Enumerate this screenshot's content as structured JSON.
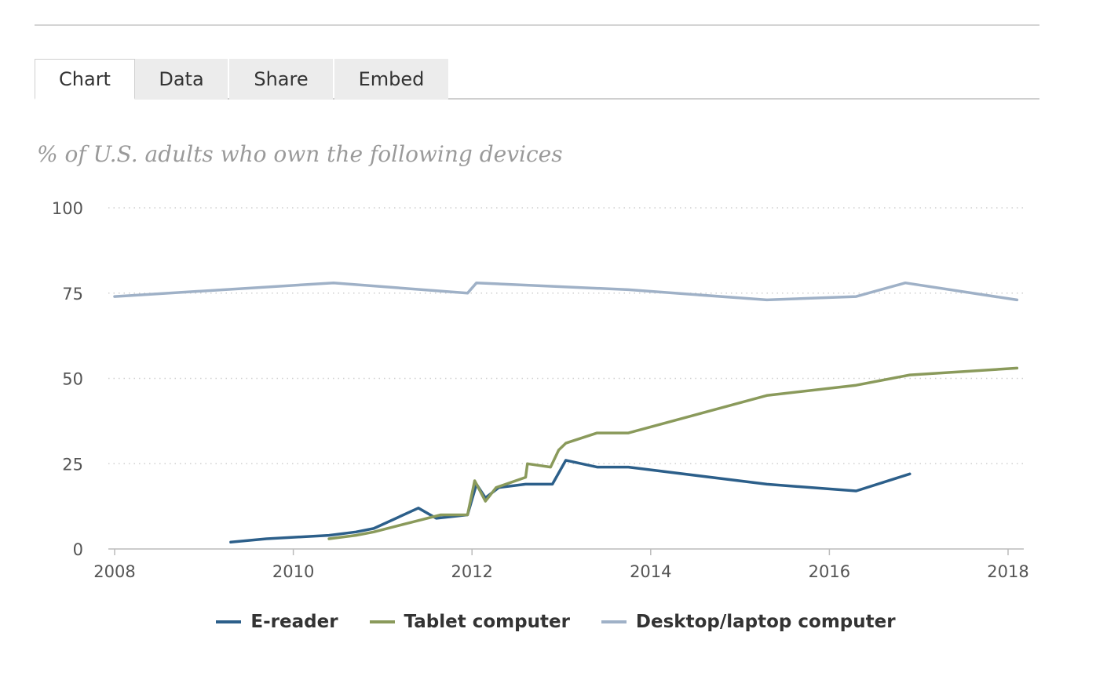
{
  "tabs": [
    {
      "label": "Chart",
      "active": true
    },
    {
      "label": "Data",
      "active": false
    },
    {
      "label": "Share",
      "active": false
    },
    {
      "label": "Embed",
      "active": false
    }
  ],
  "chart_data": {
    "type": "line",
    "subtitle": "% of U.S. adults who own the following devices",
    "xlabel": "",
    "ylabel": "",
    "xlim": [
      2008,
      2018.2
    ],
    "ylim": [
      0,
      100
    ],
    "x_ticks": [
      2008,
      2010,
      2012,
      2014,
      2016,
      2018
    ],
    "y_ticks": [
      0,
      25,
      50,
      75,
      100
    ],
    "grid": "horizontal dotted",
    "legend_position": "bottom",
    "series": [
      {
        "name": "E-reader",
        "color": "#2c5f8a",
        "points": [
          [
            2009.3,
            2
          ],
          [
            2009.7,
            3
          ],
          [
            2010.4,
            4
          ],
          [
            2010.7,
            5
          ],
          [
            2010.9,
            6
          ],
          [
            2011.4,
            12
          ],
          [
            2011.6,
            9
          ],
          [
            2011.95,
            10
          ],
          [
            2012.05,
            19
          ],
          [
            2012.15,
            15
          ],
          [
            2012.3,
            18
          ],
          [
            2012.6,
            19
          ],
          [
            2012.9,
            19
          ],
          [
            2013.05,
            26
          ],
          [
            2013.4,
            24
          ],
          [
            2013.75,
            24
          ],
          [
            2015.3,
            19
          ],
          [
            2016.3,
            17
          ],
          [
            2016.9,
            22
          ]
        ]
      },
      {
        "name": "Tablet computer",
        "color": "#8a9a5b",
        "points": [
          [
            2010.4,
            3
          ],
          [
            2010.7,
            4
          ],
          [
            2010.9,
            5
          ],
          [
            2011.35,
            8
          ],
          [
            2011.65,
            10
          ],
          [
            2011.95,
            10
          ],
          [
            2012.03,
            20
          ],
          [
            2012.15,
            14
          ],
          [
            2012.27,
            18
          ],
          [
            2012.6,
            21
          ],
          [
            2012.62,
            25
          ],
          [
            2012.88,
            24
          ],
          [
            2012.97,
            29
          ],
          [
            2013.05,
            31
          ],
          [
            2013.4,
            34
          ],
          [
            2013.75,
            34
          ],
          [
            2015.3,
            45
          ],
          [
            2016.3,
            48
          ],
          [
            2016.9,
            51
          ],
          [
            2018.1,
            53
          ]
        ]
      },
      {
        "name": "Desktop/laptop computer",
        "color": "#9fb1c7",
        "points": [
          [
            2008.0,
            74
          ],
          [
            2010.45,
            78
          ],
          [
            2011.95,
            75
          ],
          [
            2012.05,
            78
          ],
          [
            2013.75,
            76
          ],
          [
            2015.3,
            73
          ],
          [
            2016.3,
            74
          ],
          [
            2016.85,
            78
          ],
          [
            2018.1,
            73
          ]
        ]
      }
    ]
  }
}
